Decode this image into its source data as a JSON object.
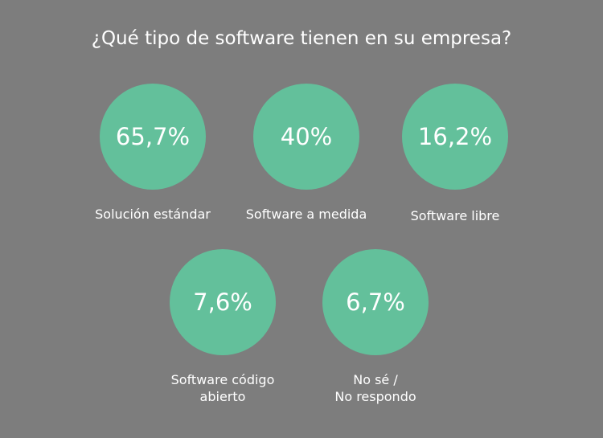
{
  "chart_data": {
    "type": "bubble-stats",
    "title": "¿Qué tipo de software tienen en su empresa?",
    "items": [
      {
        "label": "Solución estándar",
        "value": 65.7,
        "display": "65,7%"
      },
      {
        "label": "Software a medida",
        "value": 40,
        "display": "40%"
      },
      {
        "label": "Software libre",
        "value": 16.2,
        "display": "16,2%"
      },
      {
        "label": "Software código\nabierto",
        "value": 7.6,
        "display": "7,6%"
      },
      {
        "label": "No sé /\nNo respondo",
        "value": 6.7,
        "display": "6,7%"
      }
    ],
    "unit": "%",
    "colors": {
      "background": "#7d7d7d",
      "circle": "#63c09b",
      "text": "#ffffff"
    }
  }
}
